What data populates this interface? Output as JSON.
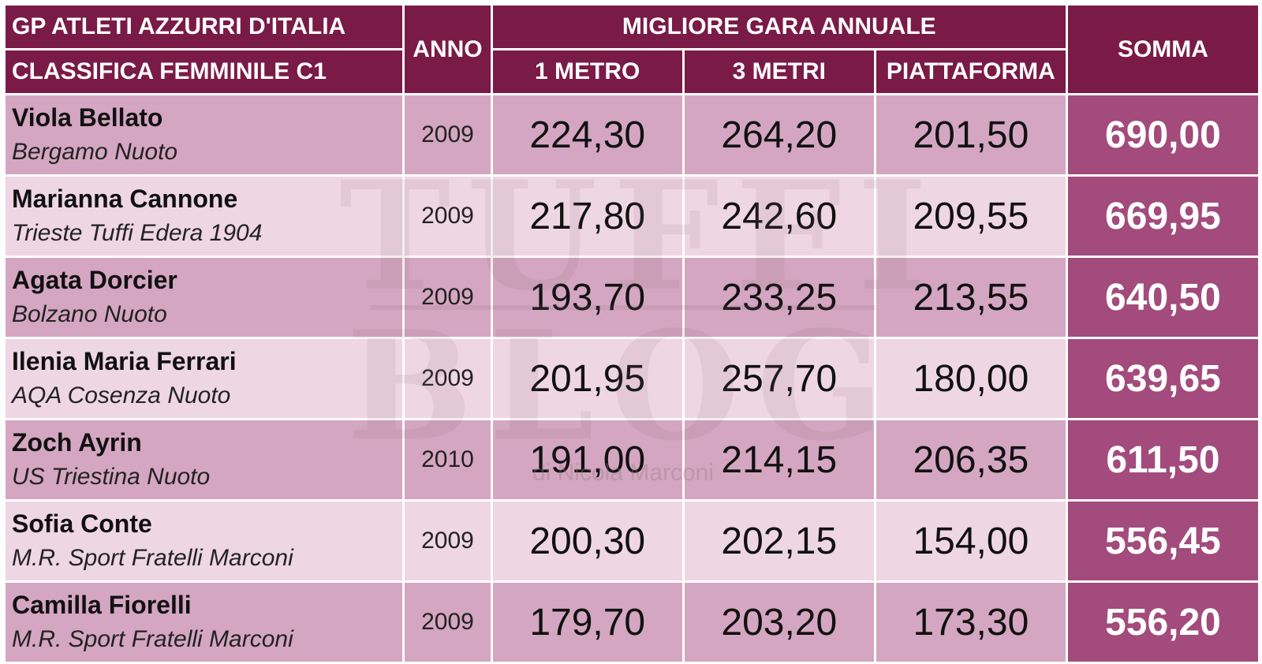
{
  "header": {
    "title_line1": "GP ATLETI AZZURRI D'ITALIA",
    "title_line2": "CLASSIFICA FEMMINILE C1",
    "year_label": "ANNO",
    "group_label": "MIGLIORE GARA ANNUALE",
    "col_1m": "1 METRO",
    "col_3m": "3 METRI",
    "col_platform": "PIATTAFORMA",
    "sum_label": "SOMMA"
  },
  "rows": [
    {
      "name": "Viola Bellato",
      "club": "Bergamo Nuoto",
      "year": "2009",
      "m1": "224,30",
      "m3": "264,20",
      "platform": "201,50",
      "sum": "690,00"
    },
    {
      "name": "Marianna Cannone",
      "club": "Trieste Tuffi Edera 1904",
      "year": "2009",
      "m1": "217,80",
      "m3": "242,60",
      "platform": "209,55",
      "sum": "669,95"
    },
    {
      "name": "Agata Dorcier",
      "club": "Bolzano Nuoto",
      "year": "2009",
      "m1": "193,70",
      "m3": "233,25",
      "platform": "213,55",
      "sum": "640,50"
    },
    {
      "name": "Ilenia Maria Ferrari",
      "club": "AQA Cosenza Nuoto",
      "year": "2009",
      "m1": "201,95",
      "m3": "257,70",
      "platform": "180,00",
      "sum": "639,65"
    },
    {
      "name": "Zoch Ayrin",
      "club": "US Triestina Nuoto",
      "year": "2010",
      "m1": "191,00",
      "m3": "214,15",
      "platform": "206,35",
      "sum": "611,50"
    },
    {
      "name": "Sofia Conte",
      "club": "M.R. Sport Fratelli Marconi",
      "year": "2009",
      "m1": "200,30",
      "m3": "202,15",
      "platform": "154,00",
      "sum": "556,45"
    },
    {
      "name": "Camilla Fiorelli",
      "club": "M.R. Sport Fratelli Marconi",
      "year": "2009",
      "m1": "179,70",
      "m3": "203,20",
      "platform": "173,30",
      "sum": "556,20"
    }
  ],
  "watermark": {
    "line1": "TUFFI",
    "line2": "BLOG",
    "credit": "di Nicola Marconi"
  },
  "colors": {
    "header_bg": "#7a1a47",
    "row_dark": "#d4a6c1",
    "row_light": "#eed6e2",
    "sum_bg": "#a24b7c"
  }
}
